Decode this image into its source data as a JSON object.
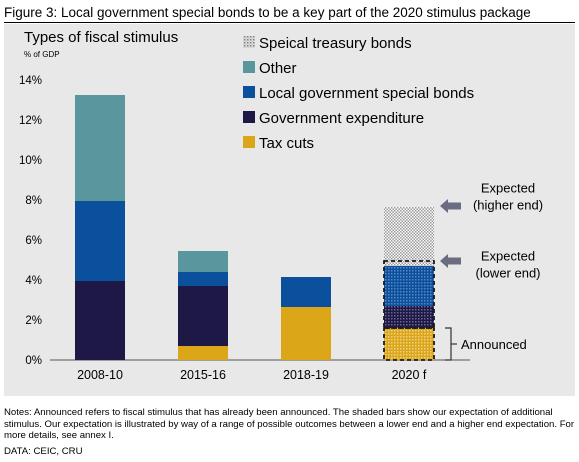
{
  "figure": {
    "title": "Figure 3: Local government special bonds to be a key part of the 2020 stimulus package",
    "notes": "Notes: Announced refers to fiscal stimulus that has already been announced. The shaded bars show our expectation of additional stimulus. Our expectation is illustrated by way of a range of possible outcomes between a lower end and a higher end expectation. For more details, see annex I.",
    "source": "DATA: CEIC, CRU"
  },
  "chart_data": {
    "type": "bar",
    "stacked": true,
    "title": "Types of fiscal stimulus",
    "ylabel": "% of GDP",
    "ylim": [
      0,
      14
    ],
    "yticks": [
      "0%",
      "2%",
      "4%",
      "6%",
      "8%",
      "10%",
      "12%",
      "14%"
    ],
    "grid": false,
    "legend_position": "top-right",
    "categories": [
      "2008-10",
      "2015-16",
      "2018-19",
      "2020 f"
    ],
    "series": [
      {
        "name": "Tax cuts",
        "color": "#dba719",
        "values": [
          0,
          0.7,
          2.65,
          1.6
        ]
      },
      {
        "name": "Government expenditure",
        "color": "#1e1846",
        "values": [
          3.95,
          3.0,
          0,
          1.1
        ]
      },
      {
        "name": "Local government special bonds",
        "color": "#0b509c",
        "values": [
          4.0,
          0.7,
          1.5,
          2.0
        ]
      },
      {
        "name": "Other",
        "color": "#5a969e",
        "values": [
          5.3,
          1.05,
          0,
          0
        ]
      },
      {
        "name": "Speical treasury bonds",
        "color": "#b0b0b0",
        "values": [
          0,
          0,
          0,
          2.95
        ]
      }
    ],
    "annotations": [
      {
        "text": [
          "Expected",
          "(higher end)"
        ],
        "value": 7.7,
        "marker": "arrow"
      },
      {
        "text": [
          "Expected",
          "(lower end)"
        ],
        "value": 4.95,
        "marker": "arrow"
      },
      {
        "text": [
          "Announced"
        ],
        "range": [
          0,
          1.6
        ],
        "marker": "bracket"
      }
    ]
  }
}
